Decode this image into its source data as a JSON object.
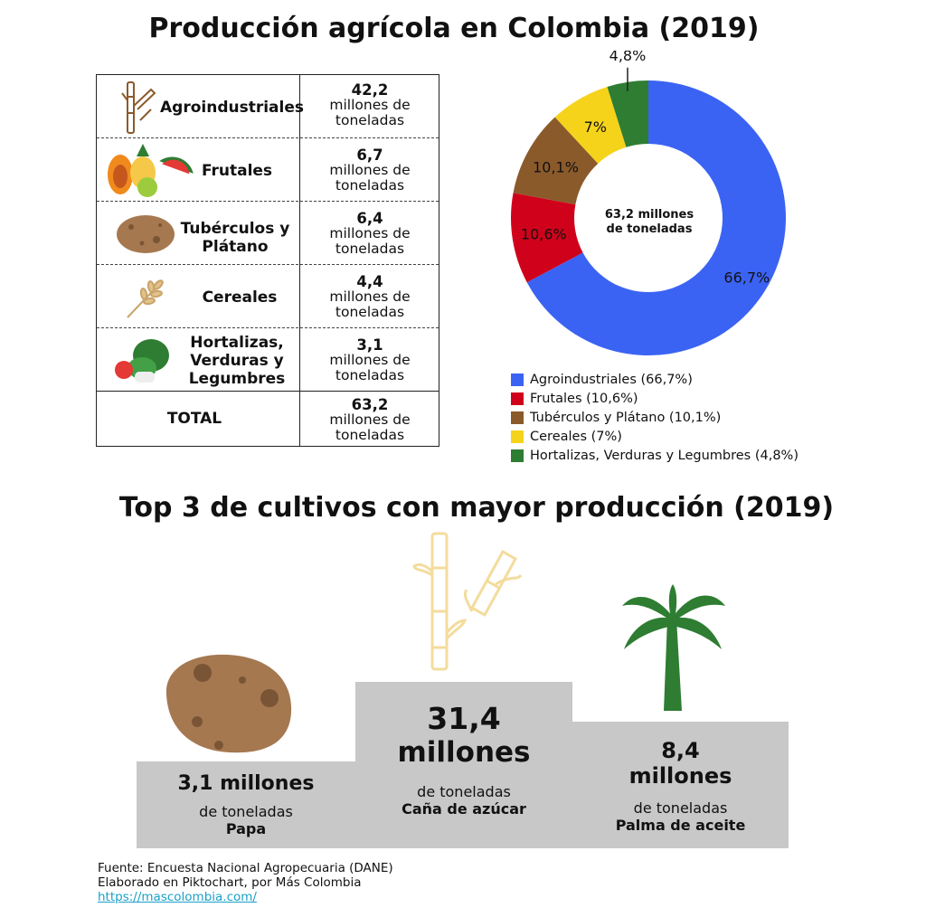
{
  "title": "Producción agrícola en Colombia (2019)",
  "table": {
    "rows": [
      {
        "category": "Agroindustriales",
        "value": "42,2",
        "unit": "millones de toneladas",
        "icon": "sugarcane-icon"
      },
      {
        "category": "Frutales",
        "value": "6,7",
        "unit": "millones de toneladas",
        "icon": "fruits-icon"
      },
      {
        "category": "Tubérculos y Plátano",
        "value": "6,4",
        "unit": "millones de toneladas",
        "icon": "potato-icon"
      },
      {
        "category": "Cereales",
        "value": "4,4",
        "unit": "millones de toneladas",
        "icon": "wheat-icon"
      },
      {
        "category": "Hortalizas, Verduras y Legumbres",
        "value": "3,1",
        "unit": "millones de toneladas",
        "icon": "vegetables-icon"
      }
    ],
    "total": {
      "label": "TOTAL",
      "value": "63,2",
      "unit": "millones de toneladas"
    }
  },
  "chart_data": {
    "type": "pie",
    "donut": true,
    "center_label": "63,2 millones de toneladas",
    "slices": [
      {
        "label": "Agroindustriales (66,7%)",
        "value": 66.7,
        "display": "66,7%",
        "color": "#3b63f3"
      },
      {
        "label": "Frutales (10,6%)",
        "value": 10.6,
        "display": "10,6%",
        "color": "#d0021b"
      },
      {
        "label": "Tubérculos y Plátano (10,1%)",
        "value": 10.1,
        "display": "10,1%",
        "color": "#8b5a2b"
      },
      {
        "label": "Cereales (7%)",
        "value": 7,
        "display": "7%",
        "color": "#f5d31b"
      },
      {
        "label": "Hortalizas, Verduras y Legumbres (4,8%)",
        "value": 4.8,
        "display": "4,8%",
        "color": "#2e7d32"
      }
    ],
    "legend_position": "bottom"
  },
  "top3": {
    "title": "Top 3 de cultivos con mayor producción (2019)",
    "items": [
      {
        "value_line1": "3,1 millones",
        "value_line2": "",
        "unit": "de toneladas",
        "crop": "Papa",
        "icon": "potato-icon"
      },
      {
        "value_line1": "31,4",
        "value_line2": "millones",
        "unit": "de toneladas",
        "crop": "Caña de azúcar",
        "icon": "sugarcane-icon"
      },
      {
        "value_line1": "8,4",
        "value_line2": "millones",
        "unit": "de toneladas",
        "crop": "Palma de aceite",
        "icon": "palm-tree-icon"
      }
    ]
  },
  "footer": {
    "source": "Fuente: Encuesta Nacional Agropecuaria (DANE)",
    "credit": "Elaborado en Piktochart, por Más Colombia",
    "link": "https://mascolombia.com/"
  },
  "colors": {
    "podium": "#c8c8c8",
    "brown": "#a57850",
    "green": "#2e7d32",
    "cane": "#f5e6b0"
  }
}
